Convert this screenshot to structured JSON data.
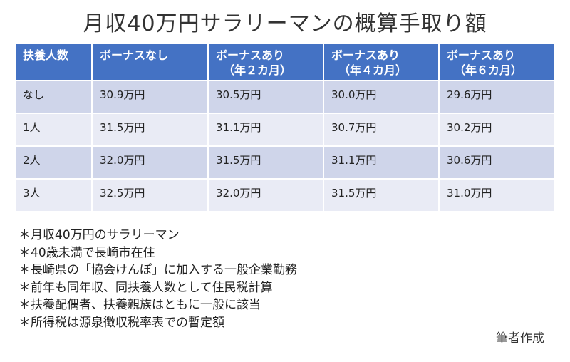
{
  "title": "月収40万円サラリーマンの概算手取り額",
  "table": {
    "headers": [
      {
        "line1": "扶養人数",
        "line2": ""
      },
      {
        "line1": "ボーナスなし",
        "line2": ""
      },
      {
        "line1": "ボーナスあり",
        "line2": "（年２カ月）"
      },
      {
        "line1": "ボーナスあり",
        "line2": "（年４カ月）"
      },
      {
        "line1": "ボーナスあり",
        "line2": "（年６カ月）"
      }
    ],
    "rows": [
      [
        "なし",
        "30.9万円",
        "30.5万円",
        "30.0万円",
        "29.6万円"
      ],
      [
        "1人",
        "31.5万円",
        "31.1万円",
        "30.7万円",
        "30.2万円"
      ],
      [
        "2人",
        "32.0万円",
        "31.5万円",
        "31.1万円",
        "30.6万円"
      ],
      [
        "3人",
        "32.5万円",
        "32.0万円",
        "31.5万円",
        "31.0万円"
      ]
    ]
  },
  "notes": [
    "＊月収40万円のサラリーマン",
    "＊40歳未満で長崎市在住",
    "＊長崎県の「協会けんぽ」に加入する一般企業勤務",
    "＊前年も同年収、同扶養人数として住民税計算",
    "＊扶養配偶者、扶養親族はともに一般に該当",
    "＊所得税は源泉徴収税率表での暫定額"
  ],
  "credit": "筆者作成",
  "colors": {
    "header_bg": "#4472c4",
    "row_dark": "#cfd5ea",
    "row_light": "#e9ebf5"
  }
}
